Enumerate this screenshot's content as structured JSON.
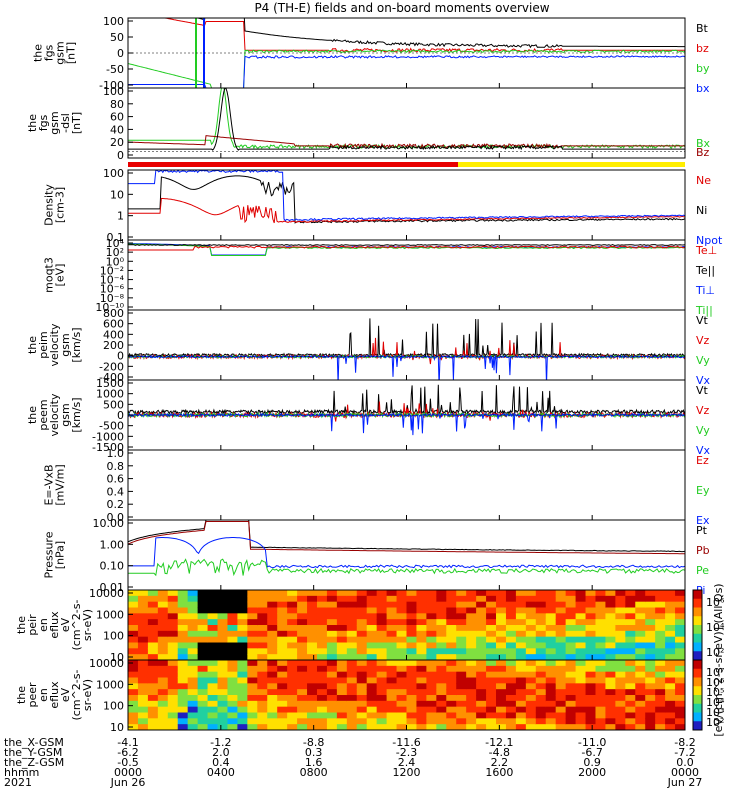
{
  "title": "P4 (TH-E) fields and on-board moments overview",
  "colors": {
    "black": "#000000",
    "red": "#e00000",
    "green": "#22cc22",
    "blue": "#0020ff",
    "darkred": "#990000",
    "bar_red": "#e80000",
    "bar_yellow": "#ffee00"
  },
  "chart_data": [
    {
      "type": "line",
      "panel": "fgs_gsm",
      "ylabel": [
        "the",
        "fgs",
        "gsm",
        "[nT]"
      ],
      "yticks": [
        "100",
        "50",
        "0",
        "-50",
        "-100"
      ],
      "ylim": [
        -100,
        100
      ],
      "series": [
        {
          "name": "Bt",
          "color": "#000000"
        },
        {
          "name": "bz",
          "color": "#e00000"
        },
        {
          "name": "by",
          "color": "#22cc22"
        },
        {
          "name": "bx",
          "color": "#0020ff"
        }
      ]
    },
    {
      "type": "line",
      "panel": "fgs_gsm_dsl",
      "ylabel": [
        "the",
        "fgs",
        "gsm",
        "-dsl",
        "[nT]"
      ],
      "yticks": [
        "100",
        "80",
        "60",
        "40",
        "20",
        "0"
      ],
      "ylim": [
        -10,
        100
      ],
      "series": [
        {
          "name": "Bx",
          "color": "#22cc22"
        },
        {
          "name": "Bz",
          "color": "#990000"
        }
      ]
    },
    {
      "type": "line",
      "panel": "density",
      "scale": "log",
      "ylabel": [
        "Density",
        "[cm-3]"
      ],
      "yticks": [
        "100",
        "10",
        "1",
        "0.1"
      ],
      "ylim": [
        0.05,
        200
      ],
      "series": [
        {
          "name": "Ne",
          "color": "#e00000"
        },
        {
          "name": "Ni",
          "color": "#000000"
        },
        {
          "name": "Npot",
          "color": "#0020ff"
        }
      ]
    },
    {
      "type": "line",
      "panel": "temperature",
      "scale": "log",
      "ylabel": [
        "moqt3",
        "[eV]"
      ],
      "yticks": [
        "10⁴",
        "10²",
        "10⁰",
        "10⁻²",
        "10⁻⁴",
        "10⁻⁶",
        "10⁻⁸",
        "10⁻¹⁰"
      ],
      "ylim": [
        1e-10,
        10000
      ],
      "series": [
        {
          "name": "Te⊥",
          "color": "#e00000"
        },
        {
          "name": "Te||",
          "color": "#000000"
        },
        {
          "name": "Ti⊥",
          "color": "#0020ff"
        },
        {
          "name": "Ti||",
          "color": "#22cc22"
        }
      ]
    },
    {
      "type": "line",
      "panel": "peim_velocity",
      "ylabel": [
        "the",
        "peim",
        "velocity",
        "gsm",
        "[km/s]"
      ],
      "yticks": [
        "800",
        "600",
        "400",
        "200",
        "0",
        "-200",
        "-400"
      ],
      "ylim": [
        -400,
        800
      ],
      "series": [
        {
          "name": "Vt",
          "color": "#000000"
        },
        {
          "name": "Vz",
          "color": "#e00000"
        },
        {
          "name": "Vy",
          "color": "#22cc22"
        },
        {
          "name": "Vx",
          "color": "#0020ff"
        }
      ]
    },
    {
      "type": "line",
      "panel": "peem_velocity",
      "ylabel": [
        "the",
        "peem",
        "velocity",
        "gsm",
        "[km/s]"
      ],
      "yticks": [
        "1500",
        "1000",
        "500",
        "0",
        "-500",
        "-1000",
        "-1500"
      ],
      "ylim": [
        -1500,
        1500
      ],
      "series": [
        {
          "name": "Vt",
          "color": "#000000"
        },
        {
          "name": "Vz",
          "color": "#e00000"
        },
        {
          "name": "Vy",
          "color": "#22cc22"
        },
        {
          "name": "Vx",
          "color": "#0020ff"
        }
      ]
    },
    {
      "type": "line",
      "panel": "efield",
      "ylabel": [
        "E=-VxB",
        "[mV/m]"
      ],
      "yticks": [
        "1.0",
        "0.8",
        "0.6",
        "0.4",
        "0.2",
        "0.0"
      ],
      "ylim": [
        0,
        1
      ],
      "series": [
        {
          "name": "Ez",
          "color": "#e00000"
        },
        {
          "name": "Ey",
          "color": "#22cc22"
        },
        {
          "name": "Ex",
          "color": "#0020ff"
        }
      ]
    },
    {
      "type": "line",
      "panel": "pressure",
      "scale": "log",
      "ylabel": [
        "Pressure",
        "[nPa]"
      ],
      "yticks": [
        "10.00",
        "1.00",
        "0.10",
        "0.01"
      ],
      "ylim": [
        0.005,
        30
      ],
      "series": [
        {
          "name": "Pt",
          "color": "#000000"
        },
        {
          "name": "Pb",
          "color": "#990000"
        },
        {
          "name": "Pe",
          "color": "#22cc22"
        },
        {
          "name": "Pi",
          "color": "#0020ff"
        }
      ]
    },
    {
      "type": "heatmap",
      "panel": "peir_spectrogram",
      "scale": "log",
      "ylabel": [
        "the",
        "peir",
        "en",
        "eflux",
        "eV",
        "(cm^2-s-",
        "sr-eV)"
      ],
      "yticks": [
        "10000",
        "1000",
        "100",
        "10"
      ],
      "ylim": [
        5,
        25000
      ],
      "colorbar_ticks": [
        "10⁶",
        "10⁴",
        "10²"
      ]
    },
    {
      "type": "heatmap",
      "panel": "peer_spectrogram",
      "scale": "log",
      "ylabel": [
        "the",
        "peer",
        "en",
        "eflux",
        "eV",
        "(cm^2-s-",
        "sr-eV)"
      ],
      "yticks": [
        "10000",
        "1000",
        "100",
        "10"
      ],
      "ylim": [
        5,
        25000
      ],
      "colorbar_ticks": [
        "10⁷",
        "10⁶",
        "10⁵",
        "10⁴",
        "10³",
        "10²"
      ]
    }
  ],
  "colorbar_label": "[eV/(cm^2-s-sr-eV)] (All Qs)",
  "x_axis": {
    "row_labels": [
      "the_X-GSM",
      "the_Y-GSM",
      "the_Z-GSM",
      "hhmm",
      "2021"
    ],
    "columns": [
      {
        "x": "-4.1",
        "y": "-6.2",
        "z": "-0.5",
        "hhmm": "0000",
        "date": "Jun 26"
      },
      {
        "x": "-1.2",
        "y": "2.0",
        "z": "0.4",
        "hhmm": "0400",
        "date": ""
      },
      {
        "x": "-8.8",
        "y": "0.3",
        "z": "1.6",
        "hhmm": "0800",
        "date": ""
      },
      {
        "x": "-11.6",
        "y": "-2.3",
        "z": "2.4",
        "hhmm": "1200",
        "date": ""
      },
      {
        "x": "-12.1",
        "y": "-4.8",
        "z": "2.2",
        "hhmm": "1600",
        "date": ""
      },
      {
        "x": "-11.0",
        "y": "-6.7",
        "z": "0.9",
        "hhmm": "2000",
        "date": ""
      },
      {
        "x": "-8.2",
        "y": "-7.2",
        "z": "0.0",
        "hhmm": "0000",
        "date": "Jun 27"
      }
    ]
  }
}
